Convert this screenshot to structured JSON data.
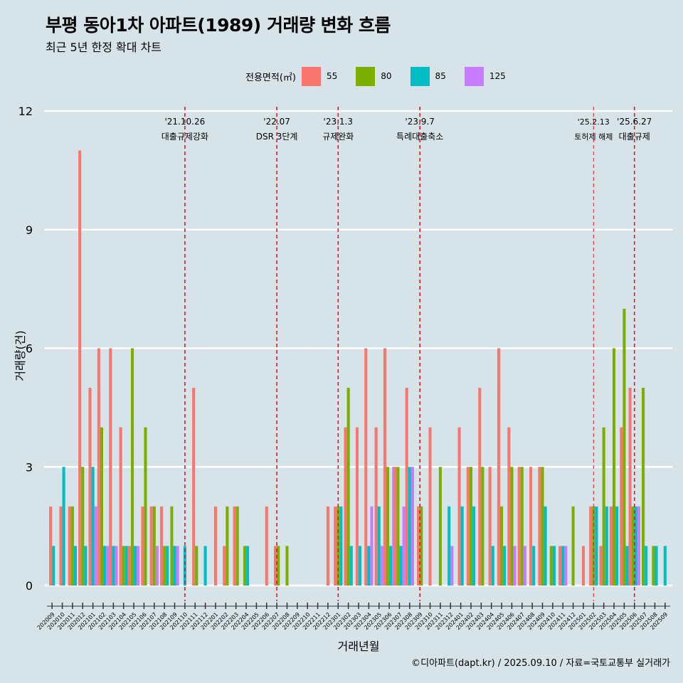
{
  "title": "부평 동아1차 아파트(1989) 거래량 변화 흐름",
  "subtitle": "최근 5년 한정 확대 차트",
  "caption": "©디아파트(dapt.kr) / 2025.09.10 / 자료=국토교통부 실거래가",
  "legend": {
    "title": "전용면적(㎡)",
    "items": [
      {
        "label": "55",
        "color": "#f8766d"
      },
      {
        "label": "80",
        "color": "#7cae00"
      },
      {
        "label": "85",
        "color": "#00bfc4"
      },
      {
        "label": "125",
        "color": "#c77cff"
      }
    ]
  },
  "chart_data": {
    "type": "bar",
    "xlabel": "거래년월",
    "ylabel": "거래량(건)",
    "ylim": [
      0,
      12
    ],
    "yticks": [
      0,
      3,
      6,
      9,
      12
    ],
    "grid": true,
    "legend_position": "top",
    "categories": [
      "202009",
      "202010",
      "202011",
      "202012",
      "202101",
      "202102",
      "202103",
      "202104",
      "202105",
      "202106",
      "202107",
      "202108",
      "202109",
      "202110",
      "202111",
      "202112",
      "202201",
      "202202",
      "202203",
      "202204",
      "202205",
      "202206",
      "202207",
      "202208",
      "202209",
      "202210",
      "202211",
      "202212",
      "202301",
      "202302",
      "202303",
      "202304",
      "202305",
      "202306",
      "202307",
      "202308",
      "202309",
      "202310",
      "202311",
      "202312",
      "202401",
      "202402",
      "202403",
      "202404",
      "202405",
      "202406",
      "202407",
      "202408",
      "202409",
      "202410",
      "202411",
      "202412",
      "202501",
      "202502",
      "202503",
      "202504",
      "202505",
      "202506",
      "202507",
      "202508",
      "202509"
    ],
    "x_labels": [
      "202009",
      "202010",
      "202011",
      "202012",
      "202101",
      "202102",
      "202103",
      "202104",
      "202105",
      "202106",
      "202107",
      "202108",
      "202109",
      "202110",
      "202111",
      "202112",
      "202201",
      "202202",
      "202203",
      "202204",
      "202205",
      "202206",
      "202207",
      "202208",
      "202209",
      "202210",
      "202211",
      "202212",
      "202301",
      "202302",
      "202303",
      "202304",
      "202305",
      "202306",
      "202307",
      "202308",
      "202309",
      "202310",
      "202311",
      "202312",
      "202401",
      "202402",
      "202403",
      "202404",
      "202405",
      "202406",
      "202407",
      "202408",
      "202409",
      "202410",
      "202411",
      "202412",
      "202501",
      "202502",
      "202503",
      "202504",
      "202505",
      "202506",
      "202507",
      "202508",
      "202509"
    ],
    "series": [
      {
        "name": "55",
        "color": "#f8766d",
        "values": [
          2,
          2,
          2,
          11,
          5,
          6,
          6,
          4,
          1,
          2,
          2,
          2,
          0,
          0,
          5,
          0,
          2,
          1,
          2,
          0,
          0,
          2,
          1,
          0,
          0,
          0,
          0,
          2,
          2,
          4,
          4,
          6,
          4,
          6,
          3,
          5,
          2,
          4,
          0,
          0,
          4,
          3,
          5,
          3,
          6,
          4,
          3,
          3,
          3,
          0,
          1,
          0,
          1,
          2,
          1,
          2,
          4,
          5,
          0,
          0,
          0
        ]
      },
      {
        "name": "80",
        "color": "#7cae00",
        "values": [
          0,
          0,
          2,
          3,
          0,
          4,
          0,
          1,
          6,
          4,
          2,
          1,
          2,
          0,
          1,
          0,
          0,
          2,
          2,
          1,
          0,
          0,
          1,
          1,
          0,
          0,
          0,
          0,
          2,
          5,
          0,
          0,
          0,
          3,
          3,
          0,
          2,
          0,
          3,
          0,
          0,
          3,
          3,
          0,
          2,
          3,
          3,
          0,
          3,
          1,
          0,
          2,
          0,
          2,
          4,
          6,
          7,
          2,
          5,
          1,
          0
        ]
      },
      {
        "name": "85",
        "color": "#00bfc4",
        "values": [
          1,
          3,
          1,
          1,
          3,
          1,
          1,
          1,
          1,
          0,
          0,
          1,
          1,
          1,
          0,
          1,
          0,
          0,
          0,
          1,
          0,
          0,
          0,
          0,
          0,
          0,
          0,
          0,
          2,
          1,
          1,
          1,
          2,
          1,
          1,
          3,
          0,
          0,
          0,
          2,
          2,
          2,
          0,
          1,
          1,
          0,
          0,
          1,
          2,
          1,
          1,
          0,
          0,
          2,
          2,
          2,
          1,
          2,
          1,
          1,
          1
        ]
      },
      {
        "name": "125",
        "color": "#c77cff",
        "values": [
          0,
          0,
          0,
          0,
          2,
          1,
          1,
          0,
          1,
          0,
          1,
          0,
          1,
          0,
          0,
          0,
          0,
          0,
          0,
          0,
          0,
          0,
          0,
          0,
          0,
          0,
          0,
          0,
          0,
          0,
          0,
          2,
          1,
          3,
          2,
          3,
          0,
          0,
          0,
          1,
          0,
          0,
          0,
          0,
          0,
          1,
          1,
          0,
          0,
          0,
          1,
          0,
          0,
          0,
          0,
          0,
          0,
          2,
          0,
          0,
          0
        ]
      }
    ],
    "events": [
      {
        "x": "202110",
        "date": "'21.10.26",
        "text": "대출규제강화"
      },
      {
        "x": "202207",
        "date": "'22.07",
        "text": "DSR 3단계"
      },
      {
        "x": "202301",
        "date": "'23.1.3",
        "text": "규제완화"
      },
      {
        "x": "202309",
        "date": "'23.9.7",
        "text": "특례대출축소"
      },
      {
        "x": "202502",
        "date": "'25.2.13",
        "text": "토허제 해제"
      },
      {
        "x": "202506",
        "date": "'25.6.27",
        "text": "대출규제"
      }
    ]
  }
}
